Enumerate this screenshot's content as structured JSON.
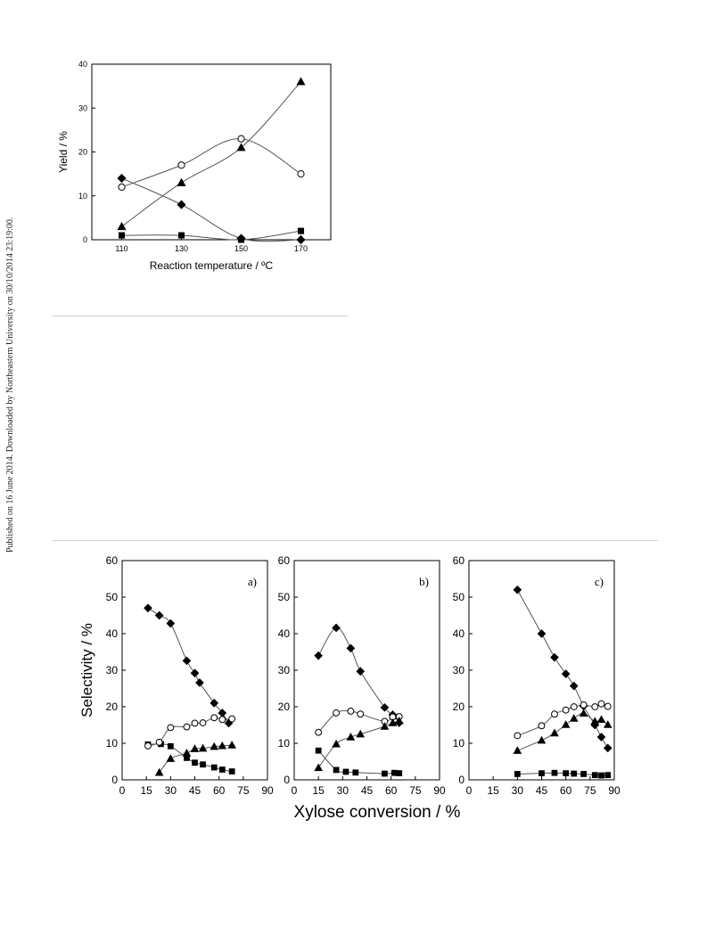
{
  "side_note": "Published on 16 June 2014. Downloaded by Northeastern University on 30/10/2014 23:19:00.",
  "series_styles": [
    {
      "symbol": "square",
      "filled": true,
      "color": "#000000"
    },
    {
      "symbol": "diamond",
      "filled": true,
      "color": "#000000"
    },
    {
      "symbol": "circle",
      "filled": false,
      "color": "#000000"
    },
    {
      "symbol": "triangle",
      "filled": true,
      "color": "#000000"
    }
  ],
  "chart_data": [
    {
      "type": "scatter",
      "title": "",
      "xlabel": "Reaction temperature / ºC",
      "ylabel": "Yield / %",
      "xlim": [
        100,
        180
      ],
      "ylim": [
        0,
        40
      ],
      "xticks": [
        110,
        130,
        150,
        170
      ],
      "yticks": [
        0,
        10,
        20,
        30,
        40
      ],
      "grid": false,
      "series": [
        {
          "points": [
            [
              110,
              1
            ],
            [
              130,
              1
            ],
            [
              150,
              0
            ],
            [
              170,
              2
            ]
          ]
        },
        {
          "points": [
            [
              110,
              14
            ],
            [
              130,
              8
            ],
            [
              150,
              0.3
            ],
            [
              170,
              0
            ]
          ]
        },
        {
          "points": [
            [
              110,
              12
            ],
            [
              130,
              17
            ],
            [
              150,
              23
            ],
            [
              170,
              15
            ]
          ]
        },
        {
          "points": [
            [
              110,
              3
            ],
            [
              130,
              13
            ],
            [
              150,
              21
            ],
            [
              170,
              36
            ]
          ]
        }
      ]
    },
    {
      "type": "scatter",
      "panel_label": "a)",
      "xlabel": "",
      "ylabel": "Selectivity / %",
      "xlim": [
        0,
        90
      ],
      "ylim": [
        0,
        60
      ],
      "xticks": [
        0,
        15,
        30,
        45,
        60,
        75,
        90
      ],
      "yticks": [
        0,
        10,
        20,
        30,
        40,
        50,
        60
      ],
      "grid": false,
      "series": [
        {
          "points": [
            [
              16,
              9.7
            ],
            [
              24,
              9.8
            ],
            [
              30,
              9.2
            ],
            [
              40,
              6
            ],
            [
              45,
              4.7
            ],
            [
              50,
              4.2
            ],
            [
              57,
              3.4
            ],
            [
              62,
              2.8
            ],
            [
              68,
              2.3
            ]
          ]
        },
        {
          "points": [
            [
              16,
              47
            ],
            [
              23,
              45
            ],
            [
              30,
              42.8
            ],
            [
              40,
              32.6
            ],
            [
              45,
              29.2
            ],
            [
              48,
              26.6
            ],
            [
              57,
              21
            ],
            [
              62,
              18.3
            ],
            [
              66,
              15.5
            ]
          ]
        },
        {
          "points": [
            [
              16,
              9.3
            ],
            [
              23,
              10.3
            ],
            [
              30,
              14.3
            ],
            [
              40,
              14.5
            ],
            [
              45,
              15.5
            ],
            [
              50,
              15.6
            ],
            [
              57,
              17
            ],
            [
              62,
              16.5
            ],
            [
              68,
              16.7
            ]
          ]
        },
        {
          "points": [
            [
              23,
              2
            ],
            [
              30,
              5.8
            ],
            [
              40,
              7.3
            ],
            [
              45,
              8.5
            ],
            [
              50,
              8.6
            ],
            [
              57,
              9.1
            ],
            [
              62,
              9.3
            ],
            [
              68,
              9.5
            ]
          ]
        }
      ]
    },
    {
      "type": "scatter",
      "panel_label": "b)",
      "xlabel": "",
      "ylabel": "",
      "xlim": [
        0,
        90
      ],
      "ylim": [
        0,
        60
      ],
      "xticks": [
        0,
        15,
        30,
        45,
        60,
        75,
        90
      ],
      "yticks": [
        0,
        10,
        20,
        30,
        40,
        50,
        60
      ],
      "grid": false,
      "series": [
        {
          "points": [
            [
              15,
              8
            ],
            [
              26,
              2.7
            ],
            [
              32,
              2.2
            ],
            [
              38,
              2
            ],
            [
              56,
              1.7
            ],
            [
              62,
              1.9
            ],
            [
              65,
              1.8
            ]
          ]
        },
        {
          "points": [
            [
              15,
              34
            ],
            [
              26,
              41.6
            ],
            [
              35,
              36
            ],
            [
              41,
              29.7
            ],
            [
              56,
              19.8
            ],
            [
              61,
              17.8
            ],
            [
              65,
              15.6
            ]
          ]
        },
        {
          "points": [
            [
              15,
              13
            ],
            [
              26,
              18.3
            ],
            [
              35,
              18.8
            ],
            [
              41,
              18
            ],
            [
              56,
              16
            ],
            [
              61,
              17.2
            ],
            [
              65,
              17.3
            ]
          ]
        },
        {
          "points": [
            [
              15,
              3.3
            ],
            [
              26,
              9.8
            ],
            [
              35,
              11.7
            ],
            [
              41,
              12.5
            ],
            [
              56,
              14.6
            ],
            [
              61,
              15.6
            ],
            [
              65,
              16.1
            ]
          ]
        }
      ]
    },
    {
      "type": "scatter",
      "panel_label": "c)",
      "xlabel": "",
      "ylabel": "",
      "xlim": [
        0,
        90
      ],
      "ylim": [
        0,
        60
      ],
      "xticks": [
        0,
        15,
        30,
        45,
        60,
        75,
        90
      ],
      "yticks": [
        0,
        10,
        20,
        30,
        40,
        50,
        60
      ],
      "grid": false,
      "series": [
        {
          "points": [
            [
              30,
              1.6
            ],
            [
              45,
              1.8
            ],
            [
              53,
              1.9
            ],
            [
              60,
              1.8
            ],
            [
              65,
              1.7
            ],
            [
              71,
              1.6
            ],
            [
              78,
              1.3
            ],
            [
              82,
              1.2
            ],
            [
              86,
              1.3
            ]
          ]
        },
        {
          "points": [
            [
              30,
              52
            ],
            [
              45,
              40
            ],
            [
              53,
              33.5
            ],
            [
              60,
              29
            ],
            [
              65,
              25.7
            ],
            [
              71,
              20.2
            ],
            [
              78,
              15
            ],
            [
              82,
              11.7
            ],
            [
              86,
              8.7
            ]
          ]
        },
        {
          "points": [
            [
              30,
              12.1
            ],
            [
              45,
              14.8
            ],
            [
              53,
              18
            ],
            [
              60,
              19.1
            ],
            [
              65,
              20
            ],
            [
              71,
              20.5
            ],
            [
              78,
              20
            ],
            [
              82,
              20.8
            ],
            [
              86,
              20.1
            ]
          ]
        },
        {
          "points": [
            [
              30,
              8
            ],
            [
              45,
              10.8
            ],
            [
              53,
              12.8
            ],
            [
              60,
              15.1
            ],
            [
              65,
              16.8
            ],
            [
              71,
              18.2
            ],
            [
              78,
              16
            ],
            [
              82,
              16.5
            ],
            [
              86,
              15.1
            ]
          ]
        }
      ]
    }
  ],
  "shared_xlabel": "Xylose conversion / %"
}
